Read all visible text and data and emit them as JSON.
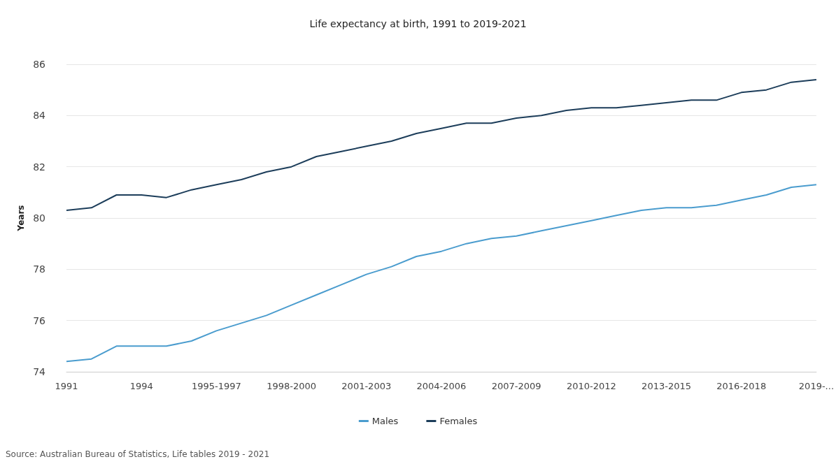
{
  "chart_data": {
    "type": "line",
    "title": "Life expectancy at birth, 1991 to 2019-2021",
    "ylabel": "Years",
    "categories": [
      "1991",
      null,
      null,
      "1994",
      null,
      null,
      "1995-1997",
      null,
      null,
      "1998-2000",
      null,
      null,
      "2001-2003",
      null,
      null,
      "2004-2006",
      null,
      null,
      "2007-2009",
      null,
      null,
      "2010-2012",
      null,
      null,
      "2013-2015",
      null,
      null,
      "2016-2018",
      null,
      null,
      "2019-..."
    ],
    "series": [
      {
        "name": "Males",
        "color": "#4a9cce",
        "values": [
          74.4,
          74.5,
          75.0,
          75.0,
          75.0,
          75.2,
          75.6,
          75.9,
          76.2,
          76.6,
          77.0,
          77.4,
          77.8,
          78.1,
          78.5,
          78.7,
          79.0,
          79.2,
          79.3,
          79.5,
          79.7,
          79.9,
          80.1,
          80.3,
          80.4,
          80.4,
          80.5,
          80.7,
          80.9,
          81.2,
          81.3
        ]
      },
      {
        "name": "Females",
        "color": "#1c3d5a",
        "values": [
          80.3,
          80.4,
          80.9,
          80.9,
          80.8,
          81.1,
          81.3,
          81.5,
          81.8,
          82.0,
          82.4,
          82.6,
          82.8,
          83.0,
          83.3,
          83.5,
          83.7,
          83.7,
          83.9,
          84.0,
          84.2,
          84.3,
          84.3,
          84.4,
          84.5,
          84.6,
          84.6,
          84.9,
          85.0,
          85.3,
          85.4
        ]
      }
    ],
    "ylim": [
      74,
      86
    ],
    "yticks": [
      74,
      76,
      78,
      80,
      82,
      84,
      86
    ],
    "grid": "y",
    "legend": "bottom",
    "marker": "none",
    "line_style": "solid",
    "annotations": [
      "Source: Australian Bureau of Statistics, Life tables 2019 - 2021"
    ]
  }
}
